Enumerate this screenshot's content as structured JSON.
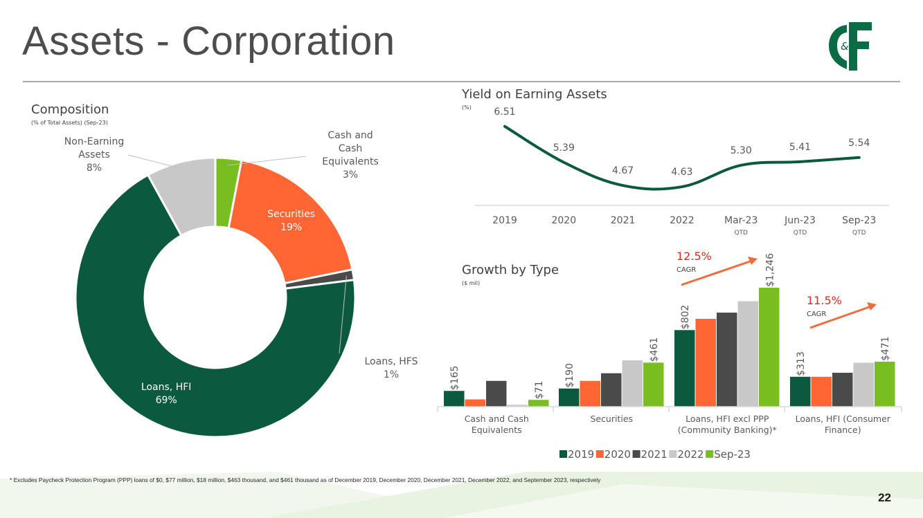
{
  "slide": {
    "title": "Assets - Corporation",
    "page_number": "22",
    "footnote": "* Excludes Paycheck Protection Program (PPP) loans of $0, $77 million, $18 million, $463 thousand, and $461 thousand as of December 2019, December 2020, December 2021, December 2022, and September 2023, respectively",
    "logo": {
      "icon": "cf-bank-logo",
      "text": "C&F"
    }
  },
  "colors": {
    "dark_green": "#0b5a40",
    "orange": "#ff6633",
    "dark_gray": "#4a4a4a",
    "light_gray": "#c8c8c8",
    "light_green": "#78be20",
    "arrow_orange": "#f26b3a",
    "cagr_red": "#e8261d"
  },
  "chart_data": [
    {
      "type": "pie",
      "title": "Composition",
      "subtitle": "(% of Total Assets) (Sep-23)",
      "slices": [
        {
          "label": "Cash and Cash Equivalents",
          "display": [
            "Cash and",
            "Cash",
            "Equivalents",
            "3%"
          ],
          "value": 3.0,
          "color": "#78be20"
        },
        {
          "label": "Securities",
          "display": [
            "Securities",
            "19%"
          ],
          "value": 18.8,
          "color": "#ff6633"
        },
        {
          "label": "Loans, HFS",
          "display": [
            "Loans, HFS",
            "1%"
          ],
          "value": 1.2,
          "color": "#4a4a4a"
        },
        {
          "label": "Loans, HFI",
          "display": [
            "Loans, HFI",
            "69%"
          ],
          "value": 69.0,
          "color": "#0b5a40"
        },
        {
          "label": "Non-Earning Assets",
          "display": [
            "Non-Earning",
            "Assets",
            "8%"
          ],
          "value": 8.0,
          "color": "#c8c8c8"
        }
      ]
    },
    {
      "type": "line",
      "title": "Yield on Earning Assets",
      "subtitle": "(%)",
      "categories": [
        "2019",
        "2020",
        "2021",
        "2022",
        "Mar-23",
        "Jun-23",
        "Sep-23"
      ],
      "sublabels": [
        "",
        "",
        "",
        "",
        "QTD",
        "QTD",
        "QTD"
      ],
      "values": [
        6.51,
        5.39,
        4.67,
        4.63,
        5.3,
        5.41,
        5.54
      ],
      "value_labels": [
        "6.51",
        "5.39",
        "4.67",
        "4.63",
        "5.30",
        "5.41",
        "5.54"
      ],
      "ylim": [
        4.2,
        7.0
      ],
      "color": "#0b5a40"
    },
    {
      "type": "bar",
      "title": "Growth by Type",
      "subtitle": "($ mil)",
      "categories": [
        [
          "Cash and Cash",
          "Equivalents"
        ],
        [
          "Securities"
        ],
        [
          "Loans, HFI excl PPP",
          "(Community Banking)*"
        ],
        [
          "Loans, HFI (Consumer",
          "Finance)"
        ]
      ],
      "series": [
        {
          "name": "2019",
          "color": "#0b5a40",
          "values": [
            165,
            190,
            802,
            313
          ]
        },
        {
          "name": "2020",
          "color": "#ff6633",
          "values": [
            76,
            270,
            920,
            313
          ]
        },
        {
          "name": "2021",
          "color": "#4a4a4a",
          "values": [
            270,
            350,
            985,
            355
          ]
        },
        {
          "name": "2022",
          "color": "#c8c8c8",
          "values": [
            20,
            485,
            1105,
            460
          ]
        },
        {
          "name": "Sep-23",
          "color": "#78be20",
          "values": [
            71,
            461,
            1246,
            471
          ]
        }
      ],
      "data_labels": [
        {
          "category": 0,
          "series": 0,
          "text": "$165"
        },
        {
          "category": 0,
          "series": 4,
          "text": "$71"
        },
        {
          "category": 1,
          "series": 0,
          "text": "$190"
        },
        {
          "category": 1,
          "series": 4,
          "text": "$461"
        },
        {
          "category": 2,
          "series": 0,
          "text": "$802"
        },
        {
          "category": 2,
          "series": 4,
          "text": "$1,246"
        },
        {
          "category": 3,
          "series": 0,
          "text": "$313"
        },
        {
          "category": 3,
          "series": 4,
          "text": "$471"
        }
      ],
      "annotations": [
        {
          "category": 2,
          "value": "12.5%",
          "label": "CAGR"
        },
        {
          "category": 3,
          "value": "11.5%",
          "label": "CAGR"
        }
      ],
      "ylim": [
        0,
        1400
      ]
    }
  ]
}
